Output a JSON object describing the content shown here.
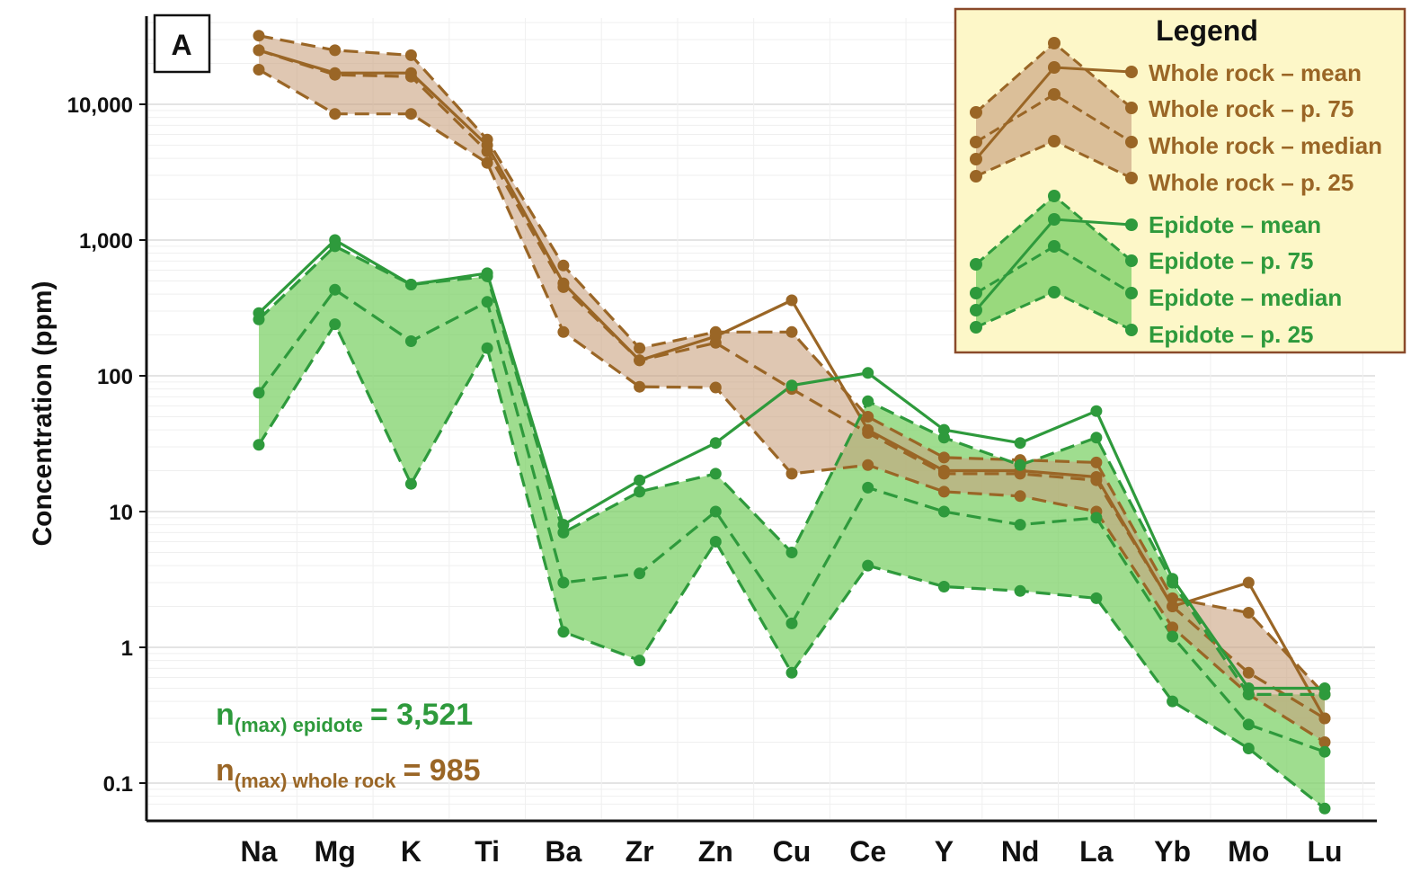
{
  "chart_data": {
    "type": "line",
    "panel_label": "A",
    "ylabel": "Concentration (ppm)",
    "xlabel": "",
    "yscale": "log",
    "ylim": [
      0.07,
      40000
    ],
    "yticks": [
      0.1,
      1,
      10,
      100,
      1000,
      10000
    ],
    "ytick_labels": [
      "0.1",
      "1",
      "10",
      "100",
      "1,000",
      "10,000"
    ],
    "grid": true,
    "legend_position": "top-right",
    "categories": [
      "Na",
      "Mg",
      "K",
      "Ti",
      "Ba",
      "Zr",
      "Zn",
      "Cu",
      "Ce",
      "Y",
      "Nd",
      "La",
      "Yb",
      "Mo",
      "Lu"
    ],
    "colors": {
      "whole_rock": "#9a6626",
      "whole_rock_fill": "#c9a27f",
      "epidote": "#2e9a3c",
      "epidote_fill": "#7fd16a",
      "legend_bg": "#fdf7c8",
      "legend_border": "#8a4a2a"
    },
    "series": [
      {
        "name": "Whole rock – mean",
        "group": "whole_rock",
        "style": "solid",
        "values": [
          25000,
          17000,
          17000,
          5000,
          480,
          130,
          195,
          360,
          40,
          20,
          20,
          18,
          2.0,
          3.0,
          0.3
        ]
      },
      {
        "name": "Whole rock – p. 75",
        "group": "whole_rock",
        "style": "dashed",
        "values": [
          32000,
          25000,
          23000,
          5500,
          650,
          160,
          210,
          210,
          50,
          25,
          24,
          23,
          2.3,
          1.8,
          0.45
        ]
      },
      {
        "name": "Whole rock – median",
        "group": "whole_rock",
        "style": "dashed",
        "values": [
          25000,
          16500,
          16000,
          4500,
          450,
          130,
          175,
          80,
          38,
          19,
          19,
          17,
          2.0,
          0.65,
          0.3
        ]
      },
      {
        "name": "Whole rock – p. 25",
        "group": "whole_rock",
        "style": "dashed",
        "values": [
          18000,
          8500,
          8500,
          3700,
          210,
          83,
          82,
          19,
          22,
          14,
          13,
          10,
          1.4,
          0.45,
          0.2
        ]
      },
      {
        "name": "Epidote – mean",
        "group": "epidote",
        "style": "solid",
        "values": [
          290,
          1000,
          470,
          570,
          8,
          17,
          32,
          85,
          105,
          40,
          32,
          55,
          3.2,
          0.5,
          0.5
        ]
      },
      {
        "name": "Epidote – p. 75",
        "group": "epidote",
        "style": "dashed",
        "values": [
          260,
          900,
          470,
          540,
          7,
          14,
          19,
          5,
          65,
          35,
          22,
          35,
          3.0,
          0.45,
          0.45
        ]
      },
      {
        "name": "Epidote – median",
        "group": "epidote",
        "style": "dashed",
        "values": [
          75,
          430,
          180,
          350,
          3,
          3.5,
          10,
          1.5,
          15,
          10,
          8,
          9,
          1.2,
          0.27,
          0.17
        ]
      },
      {
        "name": "Epidote – p. 25",
        "group": "epidote",
        "style": "dashed",
        "values": [
          31,
          240,
          16,
          160,
          1.3,
          0.8,
          6,
          0.65,
          4,
          2.8,
          2.6,
          2.3,
          0.4,
          0.18,
          0.065
        ]
      }
    ],
    "legend": {
      "title": "Legend",
      "items": [
        "Whole rock – mean",
        "Whole rock – p. 75",
        "Whole rock – median",
        "Whole rock – p. 25",
        "Epidote – mean",
        "Epidote – p. 75",
        "Epidote – median",
        "Epidote – p. 25"
      ]
    },
    "annotations": [
      {
        "main": "n",
        "sub": "(max) epidote",
        "value": "= 3,521",
        "group": "epidote"
      },
      {
        "main": "n",
        "sub": "(max) whole rock",
        "value": "= 985",
        "group": "whole_rock"
      }
    ]
  }
}
